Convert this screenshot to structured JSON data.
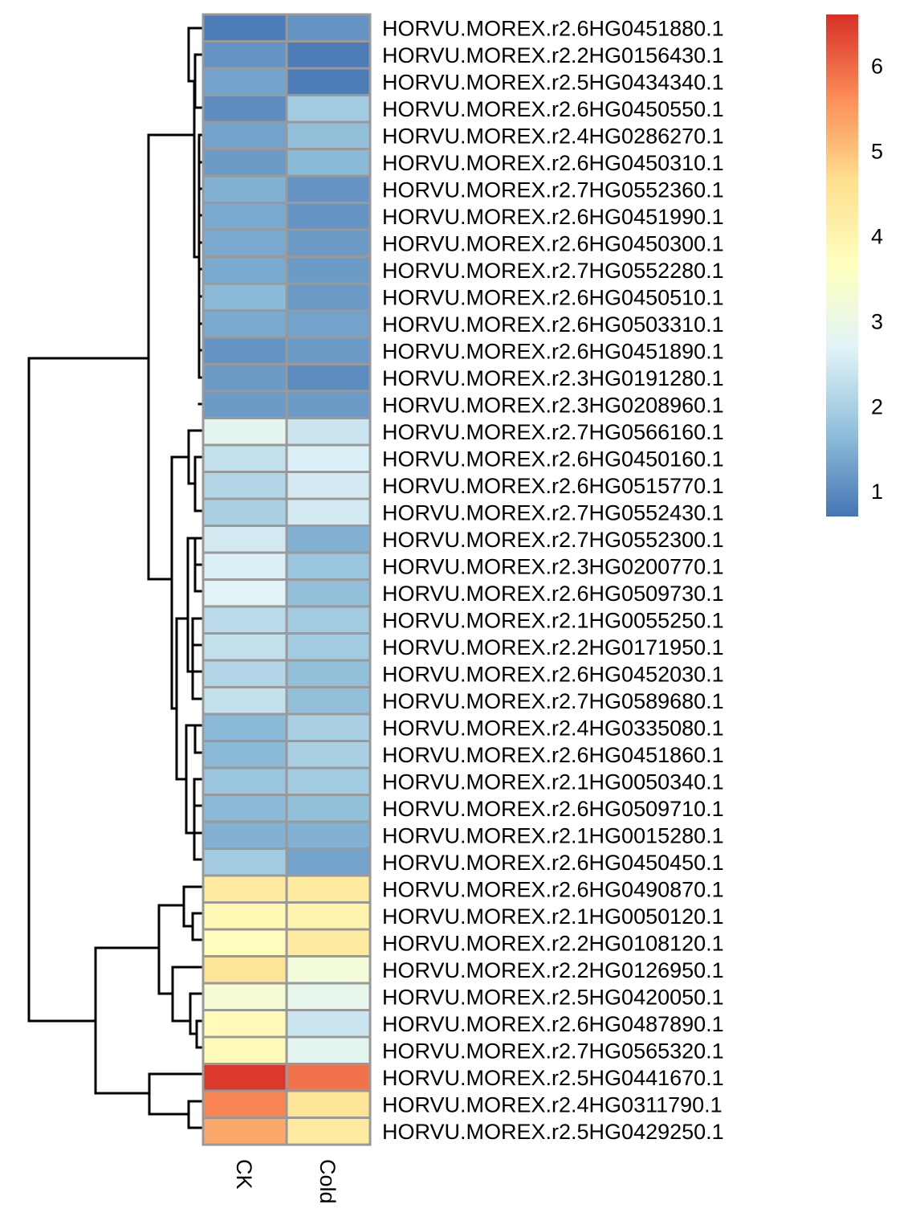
{
  "chart_data": {
    "type": "heatmap",
    "columns": [
      "CK",
      "Cold"
    ],
    "rows": [
      {
        "label": "HORVU.MOREX.r2.6HG0451880.1",
        "values": [
          0.8,
          1.1
        ]
      },
      {
        "label": "HORVU.MOREX.r2.2HG0156430.1",
        "values": [
          1.1,
          0.8
        ]
      },
      {
        "label": "HORVU.MOREX.r2.5HG0434340.1",
        "values": [
          1.3,
          0.8
        ]
      },
      {
        "label": "HORVU.MOREX.r2.6HG0450550.1",
        "values": [
          1.0,
          1.9
        ]
      },
      {
        "label": "HORVU.MOREX.r2.4HG0286270.1",
        "values": [
          1.3,
          1.7
        ]
      },
      {
        "label": "HORVU.MOREX.r2.6HG0450310.1",
        "values": [
          1.2,
          1.6
        ]
      },
      {
        "label": "HORVU.MOREX.r2.7HG0552360.1",
        "values": [
          1.5,
          1.1
        ]
      },
      {
        "label": "HORVU.MOREX.r2.6HG0451990.1",
        "values": [
          1.4,
          1.1
        ]
      },
      {
        "label": "HORVU.MOREX.r2.6HG0450300.1",
        "values": [
          1.4,
          1.2
        ]
      },
      {
        "label": "HORVU.MOREX.r2.7HG0552280.1",
        "values": [
          1.4,
          1.2
        ]
      },
      {
        "label": "HORVU.MOREX.r2.6HG0450510.1",
        "values": [
          1.6,
          1.2
        ]
      },
      {
        "label": "HORVU.MOREX.r2.6HG0503310.1",
        "values": [
          1.4,
          1.3
        ]
      },
      {
        "label": "HORVU.MOREX.r2.6HG0451890.1",
        "values": [
          1.1,
          1.2
        ]
      },
      {
        "label": "HORVU.MOREX.r2.3HG0191280.1",
        "values": [
          1.2,
          1.0
        ]
      },
      {
        "label": "HORVU.MOREX.r2.3HG0208960.1",
        "values": [
          1.2,
          1.2
        ]
      },
      {
        "label": "HORVU.MOREX.r2.7HG0566160.1",
        "values": [
          2.8,
          2.4
        ]
      },
      {
        "label": "HORVU.MOREX.r2.6HG0450160.1",
        "values": [
          2.3,
          2.6
        ]
      },
      {
        "label": "HORVU.MOREX.r2.6HG0515770.1",
        "values": [
          2.1,
          2.5
        ]
      },
      {
        "label": "HORVU.MOREX.r2.7HG0552430.1",
        "values": [
          2.0,
          2.5
        ]
      },
      {
        "label": "HORVU.MOREX.r2.7HG0552300.1",
        "values": [
          2.5,
          1.5
        ]
      },
      {
        "label": "HORVU.MOREX.r2.3HG0200770.1",
        "values": [
          2.6,
          1.8
        ]
      },
      {
        "label": "HORVU.MOREX.r2.6HG0509730.1",
        "values": [
          2.7,
          1.7
        ]
      },
      {
        "label": "HORVU.MOREX.r2.1HG0055250.1",
        "values": [
          2.2,
          1.9
        ]
      },
      {
        "label": "HORVU.MOREX.r2.2HG0171950.1",
        "values": [
          2.3,
          1.9
        ]
      },
      {
        "label": "HORVU.MOREX.r2.6HG0452030.1",
        "values": [
          2.1,
          1.7
        ]
      },
      {
        "label": "HORVU.MOREX.r2.7HG0589680.1",
        "values": [
          2.3,
          1.7
        ]
      },
      {
        "label": "HORVU.MOREX.r2.4HG0335080.1",
        "values": [
          1.6,
          2.0
        ]
      },
      {
        "label": "HORVU.MOREX.r2.6HG0451860.1",
        "values": [
          1.6,
          2.0
        ]
      },
      {
        "label": "HORVU.MOREX.r2.1HG0050340.1",
        "values": [
          1.8,
          1.9
        ]
      },
      {
        "label": "HORVU.MOREX.r2.6HG0509710.1",
        "values": [
          1.6,
          1.7
        ]
      },
      {
        "label": "HORVU.MOREX.r2.1HG0015280.1",
        "values": [
          1.5,
          1.5
        ]
      },
      {
        "label": "HORVU.MOREX.r2.6HG0450450.1",
        "values": [
          1.9,
          1.3
        ]
      },
      {
        "label": "HORVU.MOREX.r2.6HG0490870.1",
        "values": [
          4.3,
          4.3
        ]
      },
      {
        "label": "HORVU.MOREX.r2.1HG0050120.1",
        "values": [
          3.9,
          4.0
        ]
      },
      {
        "label": "HORVU.MOREX.r2.2HG0108120.1",
        "values": [
          3.7,
          4.3
        ]
      },
      {
        "label": "HORVU.MOREX.r2.2HG0126950.1",
        "values": [
          4.5,
          3.2
        ]
      },
      {
        "label": "HORVU.MOREX.r2.5HG0420050.1",
        "values": [
          3.3,
          2.9
        ]
      },
      {
        "label": "HORVU.MOREX.r2.6HG0487890.1",
        "values": [
          3.8,
          2.4
        ]
      },
      {
        "label": "HORVU.MOREX.r2.7HG0565320.1",
        "values": [
          3.8,
          2.8
        ]
      },
      {
        "label": "HORVU.MOREX.r2.5HG0441670.1",
        "values": [
          6.5,
          5.9
        ]
      },
      {
        "label": "HORVU.MOREX.r2.4HG0311790.1",
        "values": [
          5.7,
          4.5
        ]
      },
      {
        "label": "HORVU.MOREX.r2.5HG0429250.1",
        "values": [
          5.3,
          4.3
        ]
      }
    ],
    "color_scale": {
      "min": 0.7,
      "max": 6.6,
      "stops": [
        "#4575b4",
        "#91bfdb",
        "#e0f3f8",
        "#ffffbf",
        "#fee090",
        "#fc8d59",
        "#d73027"
      ]
    },
    "legend": {
      "ticks": [
        "1",
        "2",
        "3",
        "4",
        "5",
        "6"
      ],
      "placement": "top-right"
    },
    "row_dendrogram": true,
    "cell_border_color": "#999999"
  }
}
